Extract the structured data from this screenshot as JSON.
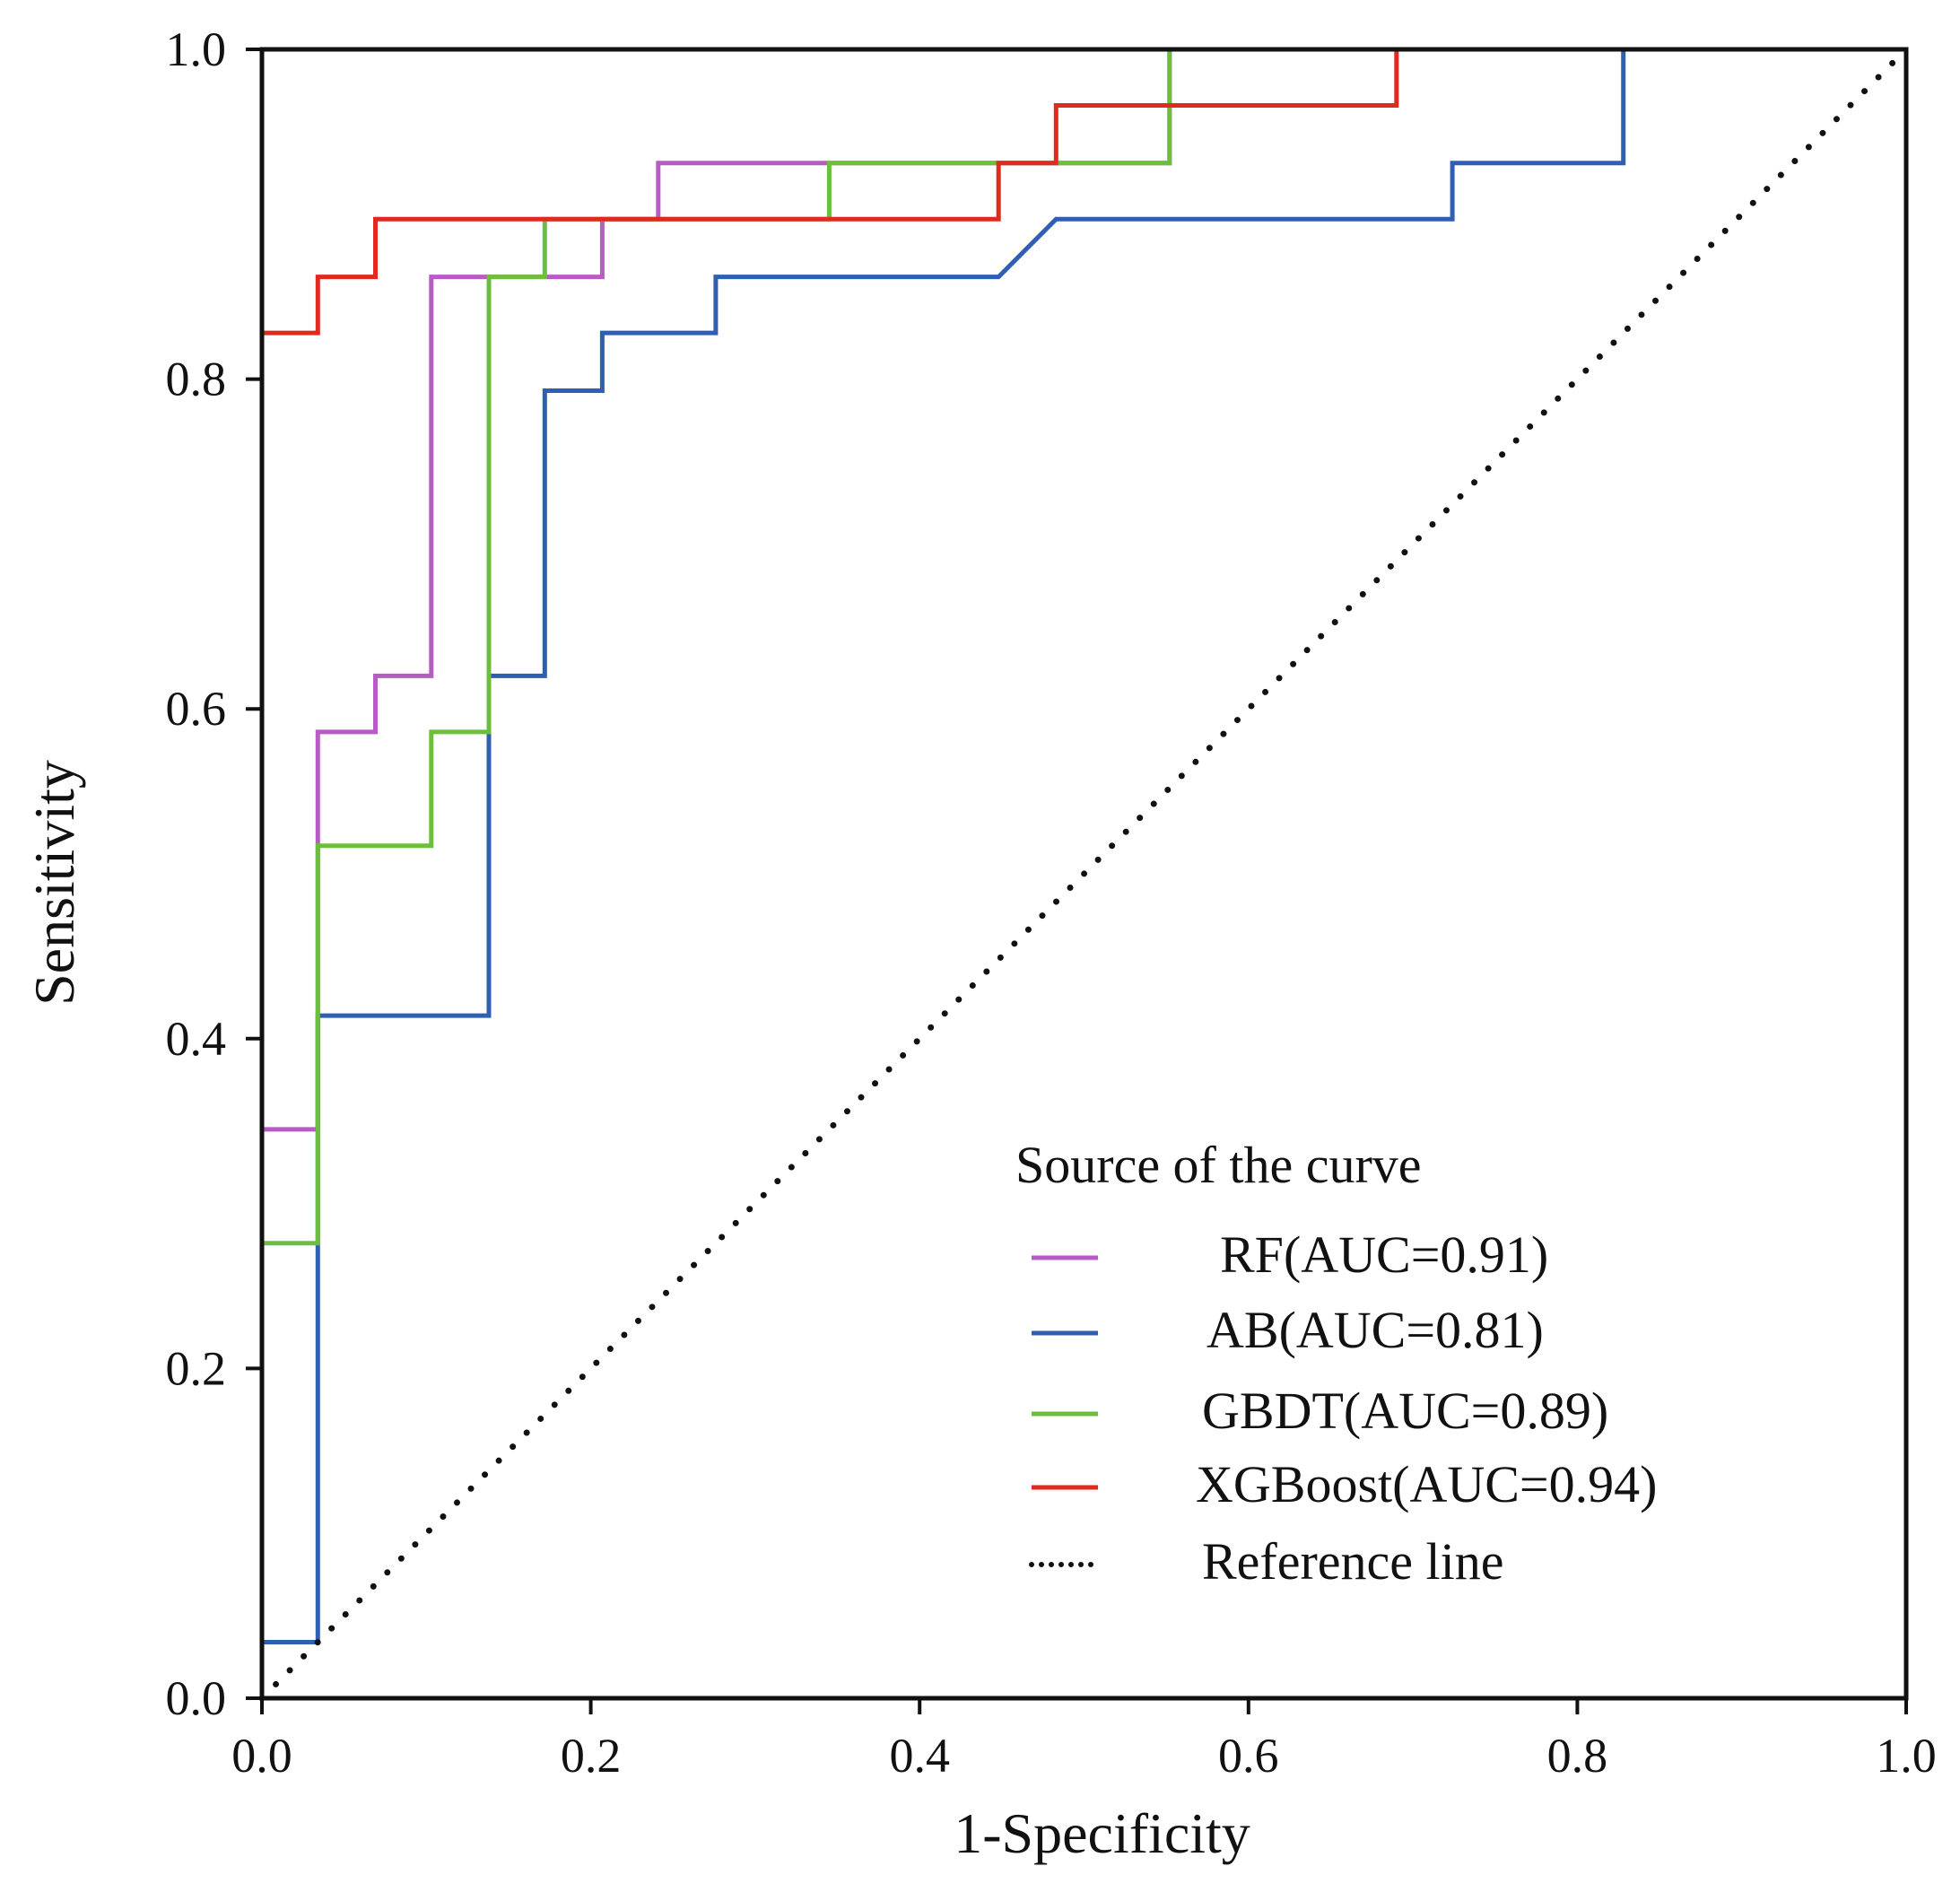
{
  "chart_data": {
    "type": "line",
    "title": "",
    "xlabel": "1-Specificity",
    "ylabel": "Sensitivity",
    "xlim": [
      0,
      1
    ],
    "ylim": [
      0,
      1
    ],
    "grid": false,
    "legend_position": "bottom-right",
    "legend_title": "Source of the curve",
    "x_ticks": [
      "0.0",
      "0.2",
      "0.4",
      "0.6",
      "0.8",
      "1.0"
    ],
    "y_ticks": [
      "0.0",
      "0.2",
      "0.4",
      "0.6",
      "0.8",
      "1.0"
    ],
    "series": [
      {
        "name": "RF(AUC=0.91)",
        "color": "#b75cc4",
        "style": "step",
        "points": [
          [
            0,
            0
          ],
          [
            0,
            0.345
          ],
          [
            0.034,
            0.345
          ],
          [
            0.034,
            0.586
          ],
          [
            0.069,
            0.586
          ],
          [
            0.069,
            0.62
          ],
          [
            0.103,
            0.62
          ],
          [
            0.103,
            0.862
          ],
          [
            0.207,
            0.862
          ],
          [
            0.207,
            0.897
          ],
          [
            0.241,
            0.897
          ],
          [
            0.241,
            0.931
          ],
          [
            0.552,
            0.931
          ],
          [
            0.552,
            1.0
          ],
          [
            1.0,
            1.0
          ]
        ]
      },
      {
        "name": "AB(AUC=0.81)",
        "color": "#2f5fb3",
        "style": "step",
        "points": [
          [
            0,
            0
          ],
          [
            0,
            0.034
          ],
          [
            0.034,
            0.034
          ],
          [
            0.034,
            0.414
          ],
          [
            0.138,
            0.414
          ],
          [
            0.138,
            0.62
          ],
          [
            0.172,
            0.62
          ],
          [
            0.172,
            0.793
          ],
          [
            0.207,
            0.793
          ],
          [
            0.207,
            0.828
          ],
          [
            0.276,
            0.828
          ],
          [
            0.276,
            0.862
          ],
          [
            0.448,
            0.862
          ],
          [
            0.483,
            0.897
          ],
          [
            0.724,
            0.897
          ],
          [
            0.724,
            0.931
          ],
          [
            0.828,
            0.931
          ],
          [
            0.828,
            1.0
          ],
          [
            1.0,
            1.0
          ]
        ]
      },
      {
        "name": "GBDT(AUC=0.89)",
        "color": "#6cbf3c",
        "style": "step",
        "points": [
          [
            0,
            0
          ],
          [
            0,
            0.276
          ],
          [
            0.034,
            0.276
          ],
          [
            0.034,
            0.517
          ],
          [
            0.103,
            0.517
          ],
          [
            0.103,
            0.586
          ],
          [
            0.138,
            0.586
          ],
          [
            0.138,
            0.862
          ],
          [
            0.172,
            0.862
          ],
          [
            0.172,
            0.897
          ],
          [
            0.345,
            0.897
          ],
          [
            0.345,
            0.931
          ],
          [
            0.552,
            0.931
          ],
          [
            0.552,
            1.0
          ],
          [
            1.0,
            1.0
          ]
        ]
      },
      {
        "name": "XGBoost(AUC=0.94)",
        "color": "#e02a20",
        "style": "step",
        "points": [
          [
            0,
            0
          ],
          [
            0,
            0.828
          ],
          [
            0.034,
            0.828
          ],
          [
            0.034,
            0.862
          ],
          [
            0.069,
            0.862
          ],
          [
            0.069,
            0.897
          ],
          [
            0.448,
            0.897
          ],
          [
            0.448,
            0.931
          ],
          [
            0.483,
            0.931
          ],
          [
            0.483,
            0.966
          ],
          [
            0.69,
            0.966
          ],
          [
            0.69,
            1.0
          ],
          [
            1.0,
            1.0
          ]
        ]
      },
      {
        "name": "Reference line",
        "color": "#111111",
        "style": "dotted",
        "points": [
          [
            0,
            0
          ],
          [
            1,
            1
          ]
        ]
      }
    ]
  }
}
